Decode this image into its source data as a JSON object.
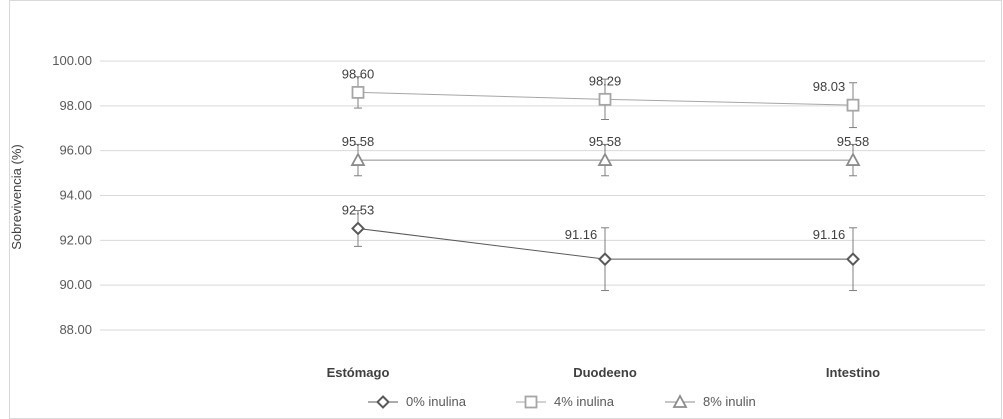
{
  "chart_data": {
    "type": "line",
    "title": "",
    "xlabel": "",
    "ylabel": "Sobrevivencia (%)",
    "ylim": [
      88,
      100
    ],
    "yticks": [
      "100.00",
      "98.00",
      "96.00",
      "94.00",
      "92.00",
      "90.00",
      "88.00"
    ],
    "categories": [
      "Estómago",
      "Duodeeno",
      "Intestino"
    ],
    "grid": true,
    "legend": "bottom",
    "series": [
      {
        "name": "0% inulina",
        "marker": "diamond",
        "color": "#595959",
        "values": [
          92.53,
          91.16,
          91.16
        ],
        "labels": [
          "92.53",
          "91.16",
          "91.16"
        ],
        "error": [
          0.8,
          1.4,
          1.4
        ]
      },
      {
        "name": "4% inulina",
        "marker": "square",
        "color": "#a6a6a6",
        "values": [
          98.6,
          98.29,
          98.03
        ],
        "labels": [
          "98.60",
          "98.29",
          "98.03"
        ],
        "error": [
          0.7,
          0.9,
          1.0
        ]
      },
      {
        "name": "8% inulin",
        "marker": "triangle",
        "color": "#8c8c8c",
        "values": [
          95.58,
          95.58,
          95.58
        ],
        "labels": [
          "95.58",
          "95.58",
          "95.58"
        ],
        "error": [
          0.7,
          0.7,
          0.7
        ]
      }
    ]
  }
}
